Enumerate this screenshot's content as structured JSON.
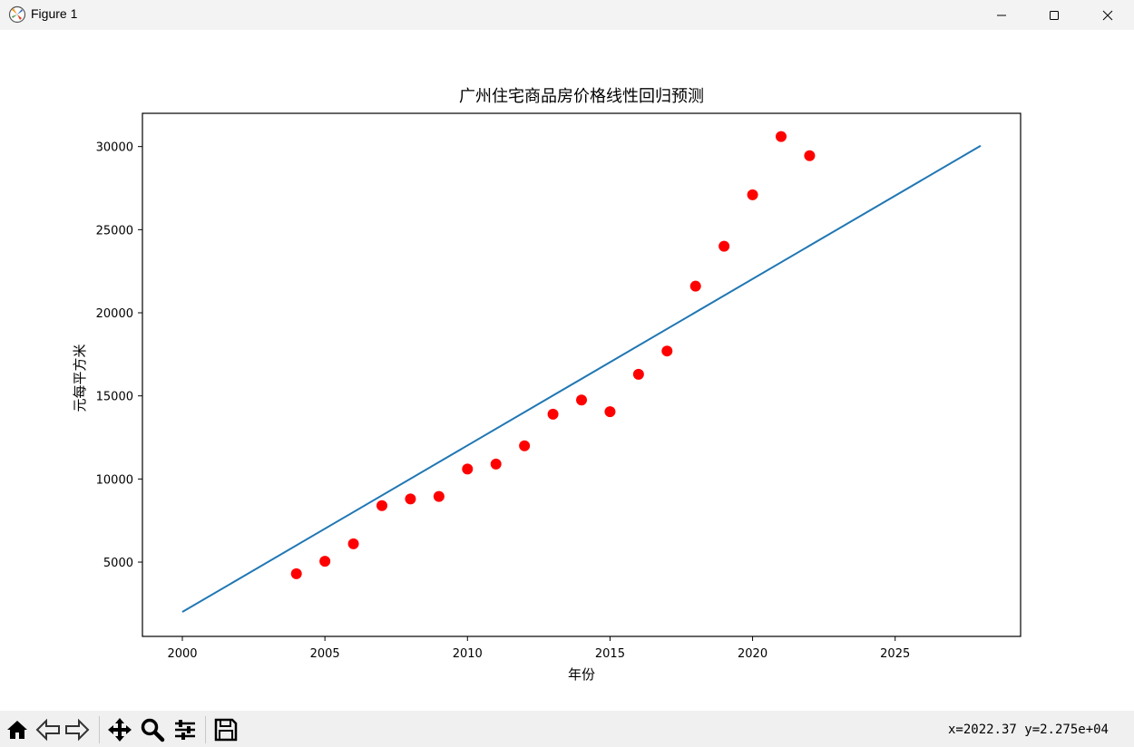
{
  "window": {
    "title": "Figure 1",
    "controls": [
      "minimize",
      "maximize",
      "close"
    ]
  },
  "toolbar": {
    "buttons": [
      "home-icon",
      "back-icon",
      "forward-icon",
      "pan-icon",
      "zoom-icon",
      "configure-icon",
      "save-icon"
    ],
    "coord_readout": "x=2022.37  y=2.275e+04"
  },
  "chart_data": {
    "type": "scatter",
    "title": "广州住宅商品房价格线性回归预测",
    "xlabel": "年份",
    "ylabel": "元每平方米",
    "xlim": [
      1998.6,
      2029.4
    ],
    "ylim": [
      530,
      32000
    ],
    "xticks": [
      2000,
      2005,
      2010,
      2015,
      2020,
      2025
    ],
    "yticks": [
      5000,
      10000,
      15000,
      20000,
      25000,
      30000
    ],
    "grid": false,
    "series": [
      {
        "kind": "scatter",
        "color": "#ff0000",
        "x": [
          2004,
          2005,
          2006,
          2007,
          2008,
          2009,
          2010,
          2011,
          2012,
          2013,
          2014,
          2015,
          2016,
          2017,
          2018,
          2019,
          2020,
          2021,
          2022
        ],
        "y": [
          4300,
          5050,
          6100,
          8400,
          8800,
          8950,
          10600,
          10900,
          12000,
          13900,
          14750,
          14050,
          16300,
          17700,
          21600,
          24000,
          27100,
          30600,
          29450
        ]
      },
      {
        "kind": "line",
        "color": "#1f77b4",
        "x": [
          2000,
          2028
        ],
        "y": [
          2000,
          30050
        ]
      }
    ]
  }
}
